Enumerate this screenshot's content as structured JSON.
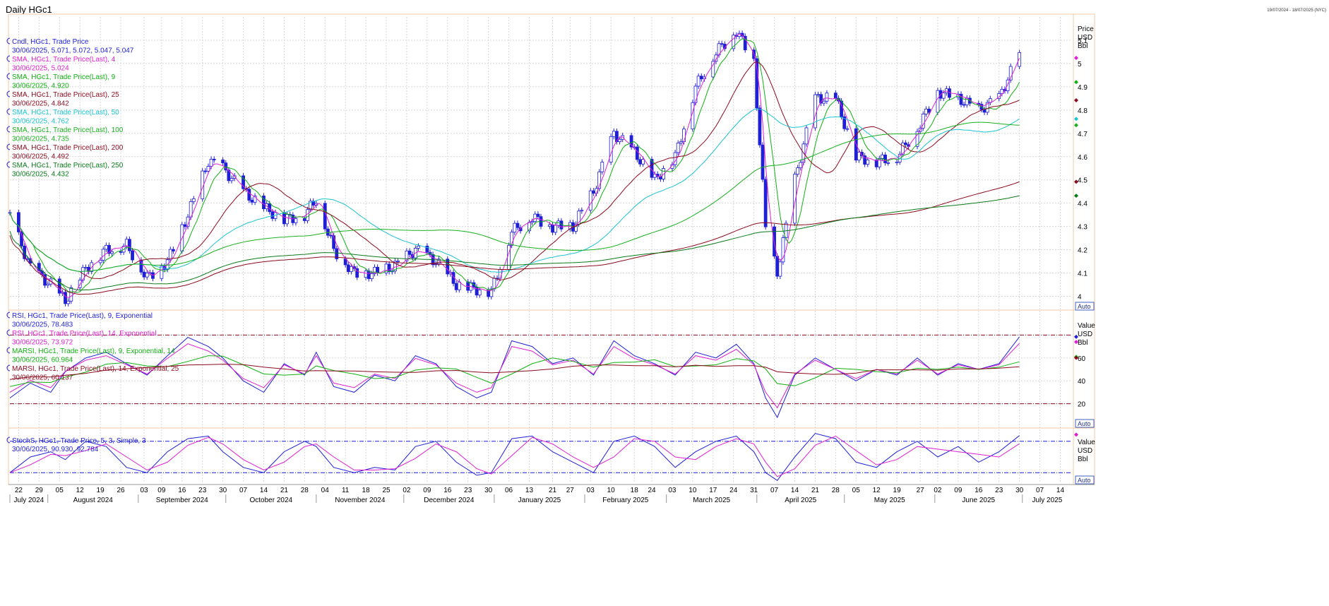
{
  "window": {
    "title": "Daily HGc1",
    "top_right": "19/07/2024 - 18/07/2025 (NYC)"
  },
  "price_panel": {
    "axis_labels": [
      "Price",
      "USD",
      "Bbl"
    ],
    "auto_label": "Auto",
    "ticks": [
      "5.1",
      "5",
      "4.9",
      "4.8",
      "4.7",
      "4.6",
      "4.5",
      "4.4",
      "4.3",
      "4.2",
      "4.1",
      "4"
    ],
    "legend": [
      {
        "name": "Cndl, HGc1, Trade Price",
        "value": "30/06/2025, 5.071, 5.072, 5.047, 5.047",
        "color": "#1f1fd6"
      },
      {
        "name": "SMA, HGc1, Trade Price(Last), 4",
        "value": "30/06/2025, 5.024",
        "color": "#e020d0"
      },
      {
        "name": "SMA, HGc1, Trade Price(Last), 9",
        "value": "30/06/2025, 4.920",
        "color": "#12b012"
      },
      {
        "name": "SMA, HGc1, Trade Price(Last), 25",
        "value": "30/06/2025, 4.842",
        "color": "#8b0a1e"
      },
      {
        "name": "SMA, HGc1, Trade Price(Last), 50",
        "value": "30/06/2025, 4.762",
        "color": "#1ac4d0"
      },
      {
        "name": "SMA, HGc1, Trade Price(Last), 100",
        "value": "30/06/2025, 4.735",
        "color": "#1ab020"
      },
      {
        "name": "SMA, HGc1, Trade Price(Last), 200",
        "value": "30/06/2025, 4.492",
        "color": "#8b0a1e"
      },
      {
        "name": "SMA, HGc1, Trade Price(Last), 250",
        "value": "30/06/2025, 4.432",
        "color": "#0a7a1a"
      }
    ]
  },
  "rsi_panel": {
    "axis_labels": [
      "Value",
      "USD",
      "Bbl"
    ],
    "auto_label": "Auto",
    "ticks": [
      "60",
      "40",
      "20"
    ],
    "legend": [
      {
        "name": "RSI, HGc1, Trade Price(Last), 9, Exponential",
        "value": "30/06/2025, 78.483",
        "color": "#1f1fd6"
      },
      {
        "name": "RSI, HGc1, Trade Price(Last), 14, Exponential",
        "value": "30/06/2025, 73.972",
        "color": "#e020d0"
      },
      {
        "name": "MARSI, HGc1, Trade Price(Last), 9, Exponential, 14",
        "value": "30/06/2025, 60.964",
        "color": "#12b012"
      },
      {
        "name": "MARSI, HGc1, Trade Price(Last), 14, Exponential, 25",
        "value": "30/06/2025, 60.137",
        "color": "#8b0a1e"
      }
    ]
  },
  "stoch_panel": {
    "axis_labels": [
      "Value",
      "USD",
      "Bbl"
    ],
    "auto_label": "Auto",
    "legend": [
      {
        "name": "StochS, HGc1, Trade Price, 5, 3, Simple, 3",
        "value": "30/06/2025, 90.930, 92.784",
        "color": "#1f1fd6"
      }
    ]
  },
  "x_axis": {
    "day_ticks": [
      "22",
      "29",
      "05",
      "12",
      "19",
      "26",
      "03",
      "09",
      "16",
      "23",
      "30",
      "07",
      "14",
      "21",
      "28",
      "04",
      "11",
      "18",
      "25",
      "02",
      "09",
      "16",
      "23",
      "30",
      "06",
      "13",
      "21",
      "27",
      "03",
      "10",
      "18",
      "24",
      "03",
      "10",
      "17",
      "24",
      "31",
      "07",
      "14",
      "21",
      "28",
      "05",
      "12",
      "19",
      "27",
      "02",
      "09",
      "16",
      "23",
      "30",
      "07",
      "14"
    ],
    "months": [
      "July 2024",
      "August 2024",
      "September 2024",
      "October 2024",
      "November 2024",
      "December 2024",
      "January 2025",
      "February 2025",
      "March 2025",
      "April 2025",
      "May 2025",
      "June 2025",
      "July 2025"
    ]
  },
  "chart_data": {
    "type": "line",
    "title": "Daily HGc1",
    "x_range": [
      "2024-07-19",
      "2025-07-18"
    ],
    "price": {
      "ylim": [
        3.95,
        5.2
      ],
      "close_series": {
        "name": "Cndl, HGc1, Trade Price",
        "dates": [
          "2024-07-19",
          "2024-07-26",
          "2024-08-02",
          "2024-08-07",
          "2024-08-14",
          "2024-08-21",
          "2024-08-28",
          "2024-09-04",
          "2024-09-11",
          "2024-09-18",
          "2024-09-25",
          "2024-09-30",
          "2024-10-07",
          "2024-10-14",
          "2024-10-21",
          "2024-10-28",
          "2024-11-01",
          "2024-11-07",
          "2024-11-14",
          "2024-11-21",
          "2024-11-28",
          "2024-12-05",
          "2024-12-12",
          "2024-12-19",
          "2024-12-26",
          "2024-12-31",
          "2025-01-07",
          "2025-01-14",
          "2025-01-21",
          "2025-01-28",
          "2025-02-04",
          "2025-02-11",
          "2025-02-18",
          "2025-02-25",
          "2025-03-04",
          "2025-03-11",
          "2025-03-18",
          "2025-03-25",
          "2025-03-31",
          "2025-04-04",
          "2025-04-08",
          "2025-04-14",
          "2025-04-21",
          "2025-04-28",
          "2025-05-05",
          "2025-05-12",
          "2025-05-19",
          "2025-05-26",
          "2025-06-02",
          "2025-06-09",
          "2025-06-16",
          "2025-06-23",
          "2025-06-30"
        ],
        "values": [
          4.35,
          4.12,
          4.05,
          3.98,
          4.12,
          4.2,
          4.22,
          4.08,
          4.15,
          4.35,
          4.58,
          4.55,
          4.45,
          4.38,
          4.33,
          4.35,
          4.42,
          4.2,
          4.1,
          4.1,
          4.13,
          4.2,
          4.15,
          4.05,
          4.03,
          4.02,
          4.28,
          4.34,
          4.3,
          4.3,
          4.45,
          4.7,
          4.62,
          4.5,
          4.6,
          4.9,
          5.05,
          5.14,
          5.01,
          4.3,
          4.1,
          4.5,
          4.85,
          4.85,
          4.6,
          4.58,
          4.6,
          4.72,
          4.88,
          4.85,
          4.8,
          4.85,
          5.047
        ]
      },
      "sma": [
        {
          "name": "SMA, HGc1, Trade Price(Last), 4",
          "last": 5.024
        },
        {
          "name": "SMA, HGc1, Trade Price(Last), 9",
          "last": 4.92
        },
        {
          "name": "SMA, HGc1, Trade Price(Last), 25",
          "last": 4.842
        },
        {
          "name": "SMA, HGc1, Trade Price(Last), 50",
          "last": 4.762
        },
        {
          "name": "SMA, HGc1, Trade Price(Last), 100",
          "last": 4.735
        },
        {
          "name": "SMA, HGc1, Trade Price(Last), 200",
          "last": 4.492
        },
        {
          "name": "SMA, HGc1, Trade Price(Last), 250",
          "last": 4.432
        }
      ]
    },
    "rsi": {
      "ylim": [
        0,
        100
      ],
      "bands": [
        80,
        20
      ],
      "rsi9_values": [
        25,
        38,
        30,
        48,
        60,
        65,
        55,
        45,
        62,
        78,
        70,
        60,
        40,
        30,
        55,
        45,
        65,
        35,
        30,
        45,
        40,
        62,
        55,
        35,
        25,
        30,
        75,
        70,
        55,
        60,
        45,
        75,
        62,
        55,
        45,
        65,
        60,
        72,
        55,
        25,
        8,
        45,
        60,
        50,
        40,
        50,
        45,
        60,
        45,
        55,
        50,
        55,
        78.483
      ],
      "rsi9_last": 78.483,
      "rsi14_last": 73.972,
      "marsi9_last": 60.964,
      "marsi14_last": 60.137
    },
    "stoch": {
      "ylim": [
        0,
        100
      ],
      "bands": [
        80,
        20
      ],
      "values": [
        20,
        50,
        60,
        45,
        80,
        70,
        30,
        20,
        60,
        85,
        90,
        60,
        30,
        20,
        60,
        80,
        70,
        30,
        20,
        30,
        25,
        70,
        80,
        40,
        15,
        20,
        85,
        90,
        60,
        40,
        20,
        80,
        90,
        70,
        30,
        60,
        80,
        90,
        60,
        20,
        5,
        50,
        95,
        85,
        40,
        30,
        60,
        80,
        50,
        70,
        40,
        60,
        90.93
      ],
      "k_last": 90.93,
      "d_last": 92.784
    }
  }
}
